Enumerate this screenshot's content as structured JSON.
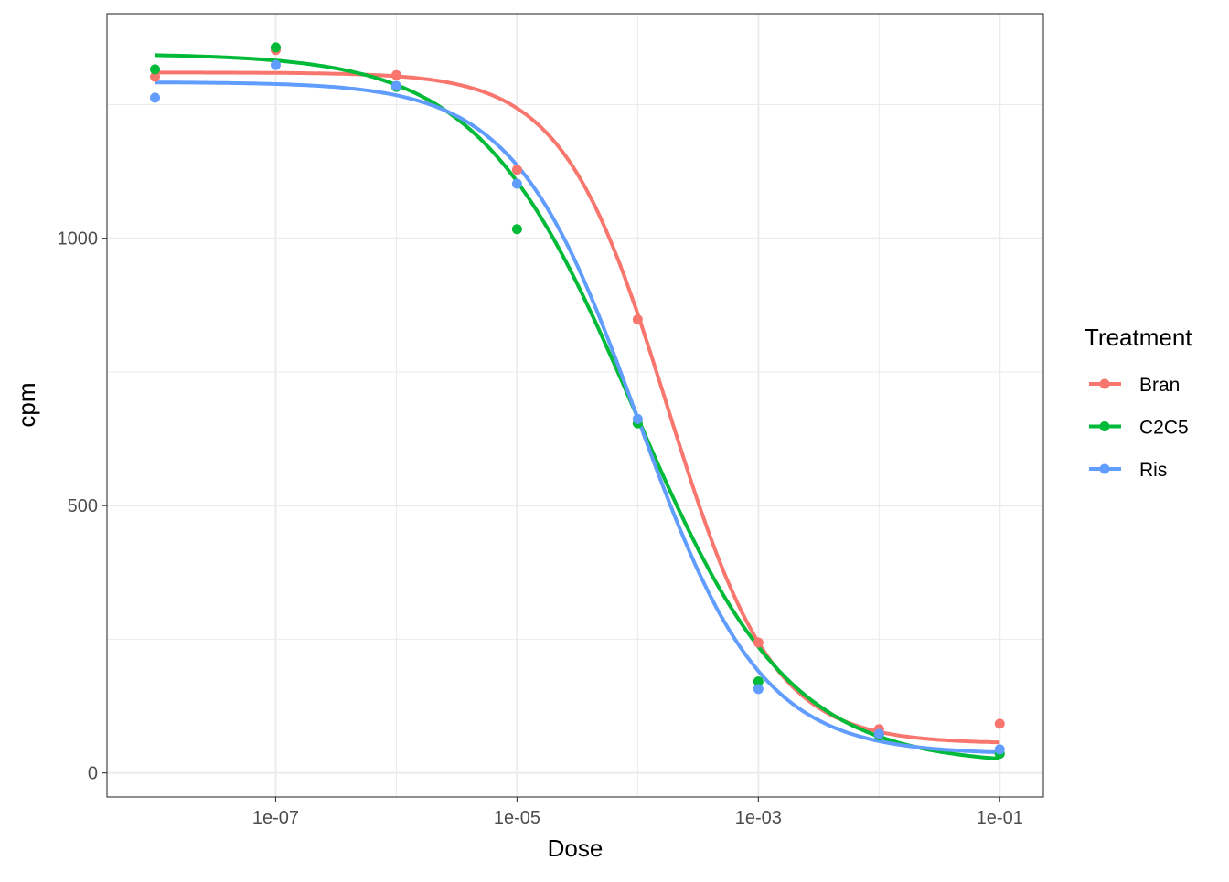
{
  "chart_data": {
    "type": "scatter",
    "xlabel": "Dose",
    "ylabel": "cpm",
    "x_scale": "log10",
    "xlim": [
      4e-09,
      0.23
    ],
    "ylim": [
      -45,
      1420
    ],
    "x_ticks": [
      1e-07,
      1e-05,
      0.001,
      0.1
    ],
    "x_tick_labels": [
      "1e-07",
      "1e-05",
      "1e-03",
      "1e-01"
    ],
    "y_ticks": [
      0,
      500,
      1000
    ],
    "y_tick_labels": [
      "0",
      "500",
      "1000"
    ],
    "grid": true,
    "legend": {
      "title": "Treatment",
      "position": "right"
    },
    "x": [
      1e-08,
      1e-07,
      1e-06,
      1e-05,
      0.0001,
      0.001,
      0.01,
      0.1
    ],
    "series": [
      {
        "name": "Bran",
        "color": "#F8766D",
        "values": [
          1302,
          1352,
          1305,
          1128,
          848,
          244,
          82,
          92
        ],
        "fit": {
          "top": 1310,
          "bottom": 55,
          "log10_ec50": -3.75,
          "hill": 1.0
        }
      },
      {
        "name": "C2C5",
        "color": "#00BA38",
        "values": [
          1316,
          1357,
          1283,
          1017,
          654,
          171,
          70,
          36
        ],
        "fit": {
          "top": 1345,
          "bottom": 15,
          "log10_ec50": -4.03,
          "hill": 0.68
        }
      },
      {
        "name": "Ris",
        "color": "#619CFF",
        "values": [
          1263,
          1324,
          1285,
          1102,
          662,
          157,
          73,
          44
        ],
        "fit": {
          "top": 1292,
          "bottom": 35,
          "log10_ec50": -4.0,
          "hill": 0.85
        }
      }
    ]
  }
}
